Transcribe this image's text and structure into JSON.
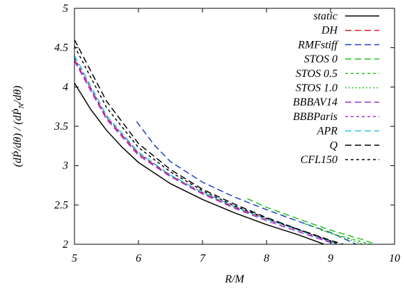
{
  "chart_data": {
    "type": "line",
    "xlabel": "R/M",
    "ylabel": "(dṖ/dθ) / (dṖN/dθ)",
    "xlim": [
      5,
      10
    ],
    "ylim": [
      2,
      5
    ],
    "xticks": [
      "5",
      "6",
      "7",
      "8",
      "9",
      "10"
    ],
    "yticks": [
      "2",
      "2.5",
      "3",
      "3.5",
      "4",
      "4.5",
      "5"
    ],
    "grid": false,
    "legend_position": "top-right",
    "series": [
      {
        "name": "static",
        "color": "#000000",
        "dash": "solid",
        "x": [
          5.0,
          5.25,
          5.5,
          5.75,
          6.0,
          6.5,
          7.0,
          7.5,
          8.0,
          8.5,
          8.9
        ],
        "y": [
          4.05,
          3.72,
          3.45,
          3.23,
          3.04,
          2.77,
          2.57,
          2.4,
          2.25,
          2.12,
          2.0
        ]
      },
      {
        "name": "DH",
        "color": "#e02020",
        "dash": "dashed",
        "x": [
          5.0,
          5.5,
          6.0,
          6.5,
          7.0,
          7.5,
          8.0,
          8.5,
          9.0,
          9.1
        ],
        "y": [
          4.35,
          3.61,
          3.15,
          2.87,
          2.65,
          2.47,
          2.32,
          2.18,
          2.04,
          2.0
        ]
      },
      {
        "name": "RMFstiff",
        "color": "#1c3fc8",
        "dash": "dashed",
        "x": [
          5.97,
          6.25,
          6.5,
          7.0,
          7.5,
          8.0,
          8.5,
          9.0,
          9.4
        ],
        "y": [
          3.56,
          3.26,
          3.05,
          2.79,
          2.6,
          2.44,
          2.29,
          2.15,
          2.0
        ]
      },
      {
        "name": "STOS 0",
        "color": "#20c020",
        "dash": "dashed",
        "x": [
          7.7,
          8.0,
          8.5,
          9.0,
          9.5,
          9.7
        ],
        "y": [
          2.58,
          2.47,
          2.32,
          2.18,
          2.06,
          2.0
        ]
      },
      {
        "name": "STOS 0.5",
        "color": "#20c020",
        "dash": "short-dashed",
        "x": [
          8.6,
          9.0,
          9.5,
          9.62
        ],
        "y": [
          2.26,
          2.14,
          2.03,
          2.0
        ]
      },
      {
        "name": "STOS 1.0",
        "color": "#20c020",
        "dash": "dotted",
        "x": [
          8.85,
          9.2,
          9.5
        ],
        "y": [
          2.18,
          2.09,
          2.0
        ]
      },
      {
        "name": "BBBAV14",
        "color": "#9b30d0",
        "dash": "dashed",
        "x": [
          5.0,
          5.5,
          6.0,
          6.5,
          7.0,
          7.5,
          8.0,
          8.5,
          9.0,
          9.05
        ],
        "y": [
          4.33,
          3.59,
          3.13,
          2.86,
          2.64,
          2.46,
          2.3,
          2.16,
          2.02,
          2.0
        ]
      },
      {
        "name": "BBBParis",
        "color": "#9b30d0",
        "dash": "short-dashed",
        "x": [
          5.0,
          5.5,
          6.0,
          6.5,
          7.0,
          7.5,
          8.0,
          8.5,
          9.0,
          9.1
        ],
        "y": [
          4.37,
          3.62,
          3.16,
          2.88,
          2.66,
          2.48,
          2.32,
          2.18,
          2.03,
          2.0
        ]
      },
      {
        "name": "APR",
        "color": "#22ccdd",
        "dash": "dashed",
        "x": [
          5.0,
          5.5,
          6.0,
          6.5,
          7.0,
          7.5,
          8.0,
          8.5,
          9.0,
          9.1
        ],
        "y": [
          4.4,
          3.64,
          3.17,
          2.88,
          2.66,
          2.48,
          2.32,
          2.18,
          2.04,
          2.0
        ]
      },
      {
        "name": "Q",
        "color": "#000000",
        "dash": "dashed",
        "x": [
          5.0,
          5.5,
          6.0,
          6.5,
          7.0,
          7.5,
          8.0,
          8.5,
          9.0,
          9.2
        ],
        "y": [
          4.6,
          3.82,
          3.28,
          2.95,
          2.7,
          2.51,
          2.34,
          2.19,
          2.05,
          2.0
        ]
      },
      {
        "name": "CFL150",
        "color": "#000000",
        "dash": "short-dashed",
        "x": [
          5.0,
          5.5,
          6.0,
          6.5,
          7.0,
          7.5,
          8.0,
          8.5,
          9.0,
          9.15
        ],
        "y": [
          4.52,
          3.74,
          3.23,
          2.92,
          2.68,
          2.49,
          2.33,
          2.19,
          2.04,
          2.0
        ]
      }
    ]
  }
}
